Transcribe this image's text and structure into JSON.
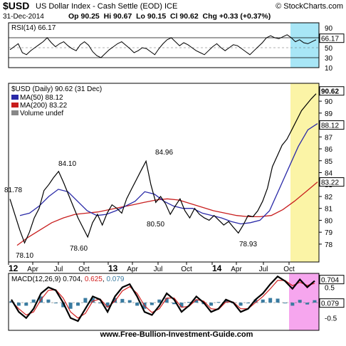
{
  "header": {
    "ticker": "$USD",
    "name": "US Dollar Index - Cash Settle (EOD) ICE",
    "date": "31-Dec-2014",
    "watermark": "© StockCharts.com",
    "quote": "Op 90.25  Hi 90.67  Lo 90.15  Cl 90.62  Chg +0.33 (+0.37%)"
  },
  "colors": {
    "background": "#ffffff",
    "rsi_shade": "#a8e6f6",
    "price_shade": "#fbf4a6",
    "macd_shade": "#f6a6ee",
    "price_line": "#000000",
    "ma50": "#2a2aa8",
    "ma200": "#c81e1e",
    "macd_signal": "#d22020",
    "histogram": "#3a7ba0"
  },
  "footer": {
    "site": "www.Free-Bullion-Investment-Guide.com"
  },
  "chart_data": [
    {
      "type": "line",
      "panel": "rsi",
      "legend": "RSI(14) 66.17",
      "value_label": "66.17",
      "ylim": [
        10,
        100
      ],
      "yticks": [
        "90",
        "70",
        "50",
        "30",
        "10"
      ],
      "reference_lines": [
        70,
        30
      ],
      "series": [
        {
          "values": [
            46,
            52,
            58,
            40,
            36,
            44,
            50,
            56,
            62,
            70,
            60,
            52,
            58,
            62,
            54,
            48,
            44,
            56,
            62,
            55,
            42,
            34,
            30,
            38,
            46,
            52,
            58,
            62,
            55,
            48,
            40,
            44,
            50,
            48,
            42,
            36,
            48,
            58,
            66,
            70,
            62,
            54,
            60,
            56,
            50,
            44,
            40,
            36,
            44,
            52,
            58,
            50,
            44,
            50,
            56,
            54,
            48,
            42,
            36,
            44,
            52,
            60,
            70,
            74,
            70,
            68,
            72,
            76,
            70,
            62,
            66,
            60,
            58,
            62,
            66
          ]
        }
      ]
    },
    {
      "type": "line",
      "panel": "price",
      "title": "$USD (Daily) 90.62 (31 Dec)",
      "legend": [
        "MA(50) 88.12",
        "MA(200) 83.22",
        "Volume undef"
      ],
      "value_labels": [
        "90.62",
        "88.12",
        "83.22"
      ],
      "ylim": [
        76.5,
        91.5
      ],
      "yticks": [
        "90",
        "89",
        "88",
        "87",
        "86",
        "85",
        "84",
        "83",
        "82",
        "81",
        "80",
        "79",
        "78"
      ],
      "annotations": [
        "81.78",
        "78.10",
        "84.10",
        "78.60",
        "84.96",
        "80.50",
        "78.93"
      ],
      "series": [
        {
          "name": "$USD",
          "values": [
            81.78,
            80.5,
            79.2,
            78.1,
            79.0,
            80.2,
            81.0,
            82.5,
            83.0,
            83.6,
            84.1,
            83.2,
            82.2,
            81.2,
            80.2,
            79.4,
            78.6,
            79.8,
            80.5,
            79.6,
            80.6,
            81.3,
            81.0,
            80.6,
            81.8,
            82.6,
            83.4,
            84.2,
            84.96,
            83.0,
            81.5,
            82.0,
            81.4,
            80.5,
            81.2,
            81.8,
            80.8,
            80.2,
            81.0,
            80.5,
            80.2,
            80.0,
            80.4,
            80.0,
            79.6,
            79.9,
            79.4,
            78.93,
            79.6,
            80.4,
            80.3,
            80.8,
            81.6,
            82.7,
            84.5,
            85.4,
            86.3,
            86.8,
            87.6,
            88.4,
            89.2,
            89.7,
            90.2,
            90.62
          ]
        },
        {
          "name": "MA(50)",
          "values": [
            80.4,
            80.6,
            81.2,
            82.0,
            82.6,
            82.4,
            81.6,
            80.8,
            80.4,
            80.5,
            80.8,
            81.2,
            81.6,
            82.4,
            82.2,
            81.6,
            81.2,
            81.0,
            81.0,
            80.6,
            80.4,
            80.2,
            79.9,
            79.7,
            79.8,
            80.0,
            80.8,
            82.6,
            84.4,
            86.2,
            87.6,
            88.12
          ]
        },
        {
          "name": "MA(200)",
          "values": [
            77.9,
            78.6,
            79.2,
            79.8,
            80.2,
            80.5,
            80.6,
            80.7,
            80.9,
            81.1,
            81.3,
            81.5,
            81.7,
            81.8,
            81.7,
            81.4,
            81.1,
            80.8,
            80.6,
            80.4,
            80.3,
            80.3,
            80.4,
            80.9,
            81.6,
            82.4,
            83.22
          ]
        }
      ],
      "x_axis_labels": [
        "12",
        "Apr",
        "Jul",
        "Oct",
        "13",
        "Apr",
        "Jul",
        "Oct",
        "14",
        "Apr",
        "Jul",
        "Oct"
      ]
    },
    {
      "type": "line",
      "panel": "macd",
      "legend": {
        "prefix": "MACD(12,26,9)",
        "macd": "0.704",
        "signal": "0.625",
        "hist": "0.079"
      },
      "value_labels": [
        "0.704",
        "0.079"
      ],
      "ylim": [
        -0.9,
        0.95
      ],
      "yticks": [
        "0.5",
        "-0.5"
      ],
      "series": [
        {
          "name": "MACD",
          "values": [
            0.1,
            -0.3,
            -0.5,
            -0.2,
            0.3,
            0.5,
            0.4,
            0.0,
            -0.5,
            -0.6,
            -0.2,
            0.2,
            0.1,
            -0.3,
            0.2,
            0.5,
            0.6,
            0.2,
            -0.3,
            -0.4,
            -0.1,
            0.3,
            0.1,
            -0.3,
            -0.1,
            0.2,
            0.0,
            -0.3,
            -0.2,
            0.1,
            0.0,
            -0.3,
            -0.2,
            0.1,
            0.3,
            0.6,
            0.85,
            0.7,
            0.45,
            0.75,
            0.5,
            0.704
          ]
        },
        {
          "name": "Signal",
          "values": [
            0.05,
            -0.2,
            -0.4,
            -0.3,
            0.1,
            0.4,
            0.42,
            0.15,
            -0.3,
            -0.5,
            -0.35,
            0.05,
            0.12,
            -0.15,
            0.05,
            0.38,
            0.52,
            0.3,
            -0.1,
            -0.32,
            -0.2,
            0.15,
            0.15,
            -0.15,
            -0.12,
            0.1,
            0.05,
            -0.2,
            -0.22,
            0.02,
            0.02,
            -0.2,
            -0.2,
            0.0,
            0.2,
            0.45,
            0.72,
            0.72,
            0.55,
            0.66,
            0.56,
            0.625
          ]
        },
        {
          "name": "Histogram",
          "values": [
            0.05,
            -0.1,
            -0.1,
            0.1,
            0.2,
            0.1,
            -0.02,
            -0.15,
            -0.2,
            -0.1,
            0.15,
            0.15,
            -0.02,
            -0.15,
            0.15,
            0.12,
            0.08,
            -0.1,
            -0.2,
            -0.08,
            0.1,
            0.15,
            -0.05,
            -0.15,
            0.02,
            0.1,
            -0.05,
            -0.1,
            0.02,
            0.08,
            -0.02,
            -0.1,
            0.0,
            0.1,
            0.1,
            0.15,
            0.13,
            -0.02,
            -0.1,
            0.09,
            -0.06,
            0.079
          ]
        }
      ]
    }
  ]
}
